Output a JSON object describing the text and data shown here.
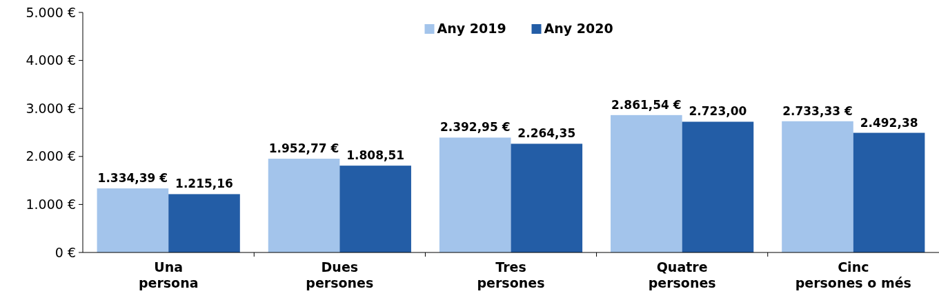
{
  "chart_data": {
    "type": "bar",
    "categories": [
      "Una\npersona",
      "Dues\npersones",
      "Tres\npersones",
      "Quatre\npersones",
      "Cinc\npersones o més"
    ],
    "series": [
      {
        "name": "Any 2019",
        "color": "#a3c4eb",
        "values": [
          1334.39,
          1952.77,
          2392.95,
          2861.54,
          2733.33
        ],
        "value_labels": [
          "1.334,39 €",
          "1.952,77 €",
          "2.392,95 €",
          "2.861,54 €",
          "2.733,33 €"
        ]
      },
      {
        "name": "Any 2020",
        "color": "#235da6",
        "values": [
          1215.16,
          1808.51,
          2264.35,
          2723.0,
          2492.38
        ],
        "value_labels": [
          "1.215,16",
          "1.808,51",
          "2.264,35",
          "2.723,00",
          "2.492,38"
        ]
      }
    ],
    "ylim": [
      0,
      5000
    ],
    "yticks": [
      {
        "value": 0,
        "label": "0 €"
      },
      {
        "value": 1000,
        "label": "1.000 €"
      },
      {
        "value": 2000,
        "label": "2.000 €"
      },
      {
        "value": 3000,
        "label": "3.000 €"
      },
      {
        "value": 4000,
        "label": "4.000 €"
      },
      {
        "value": 5000,
        "label": "5.000 €"
      }
    ],
    "grid": false,
    "legend": "top"
  }
}
